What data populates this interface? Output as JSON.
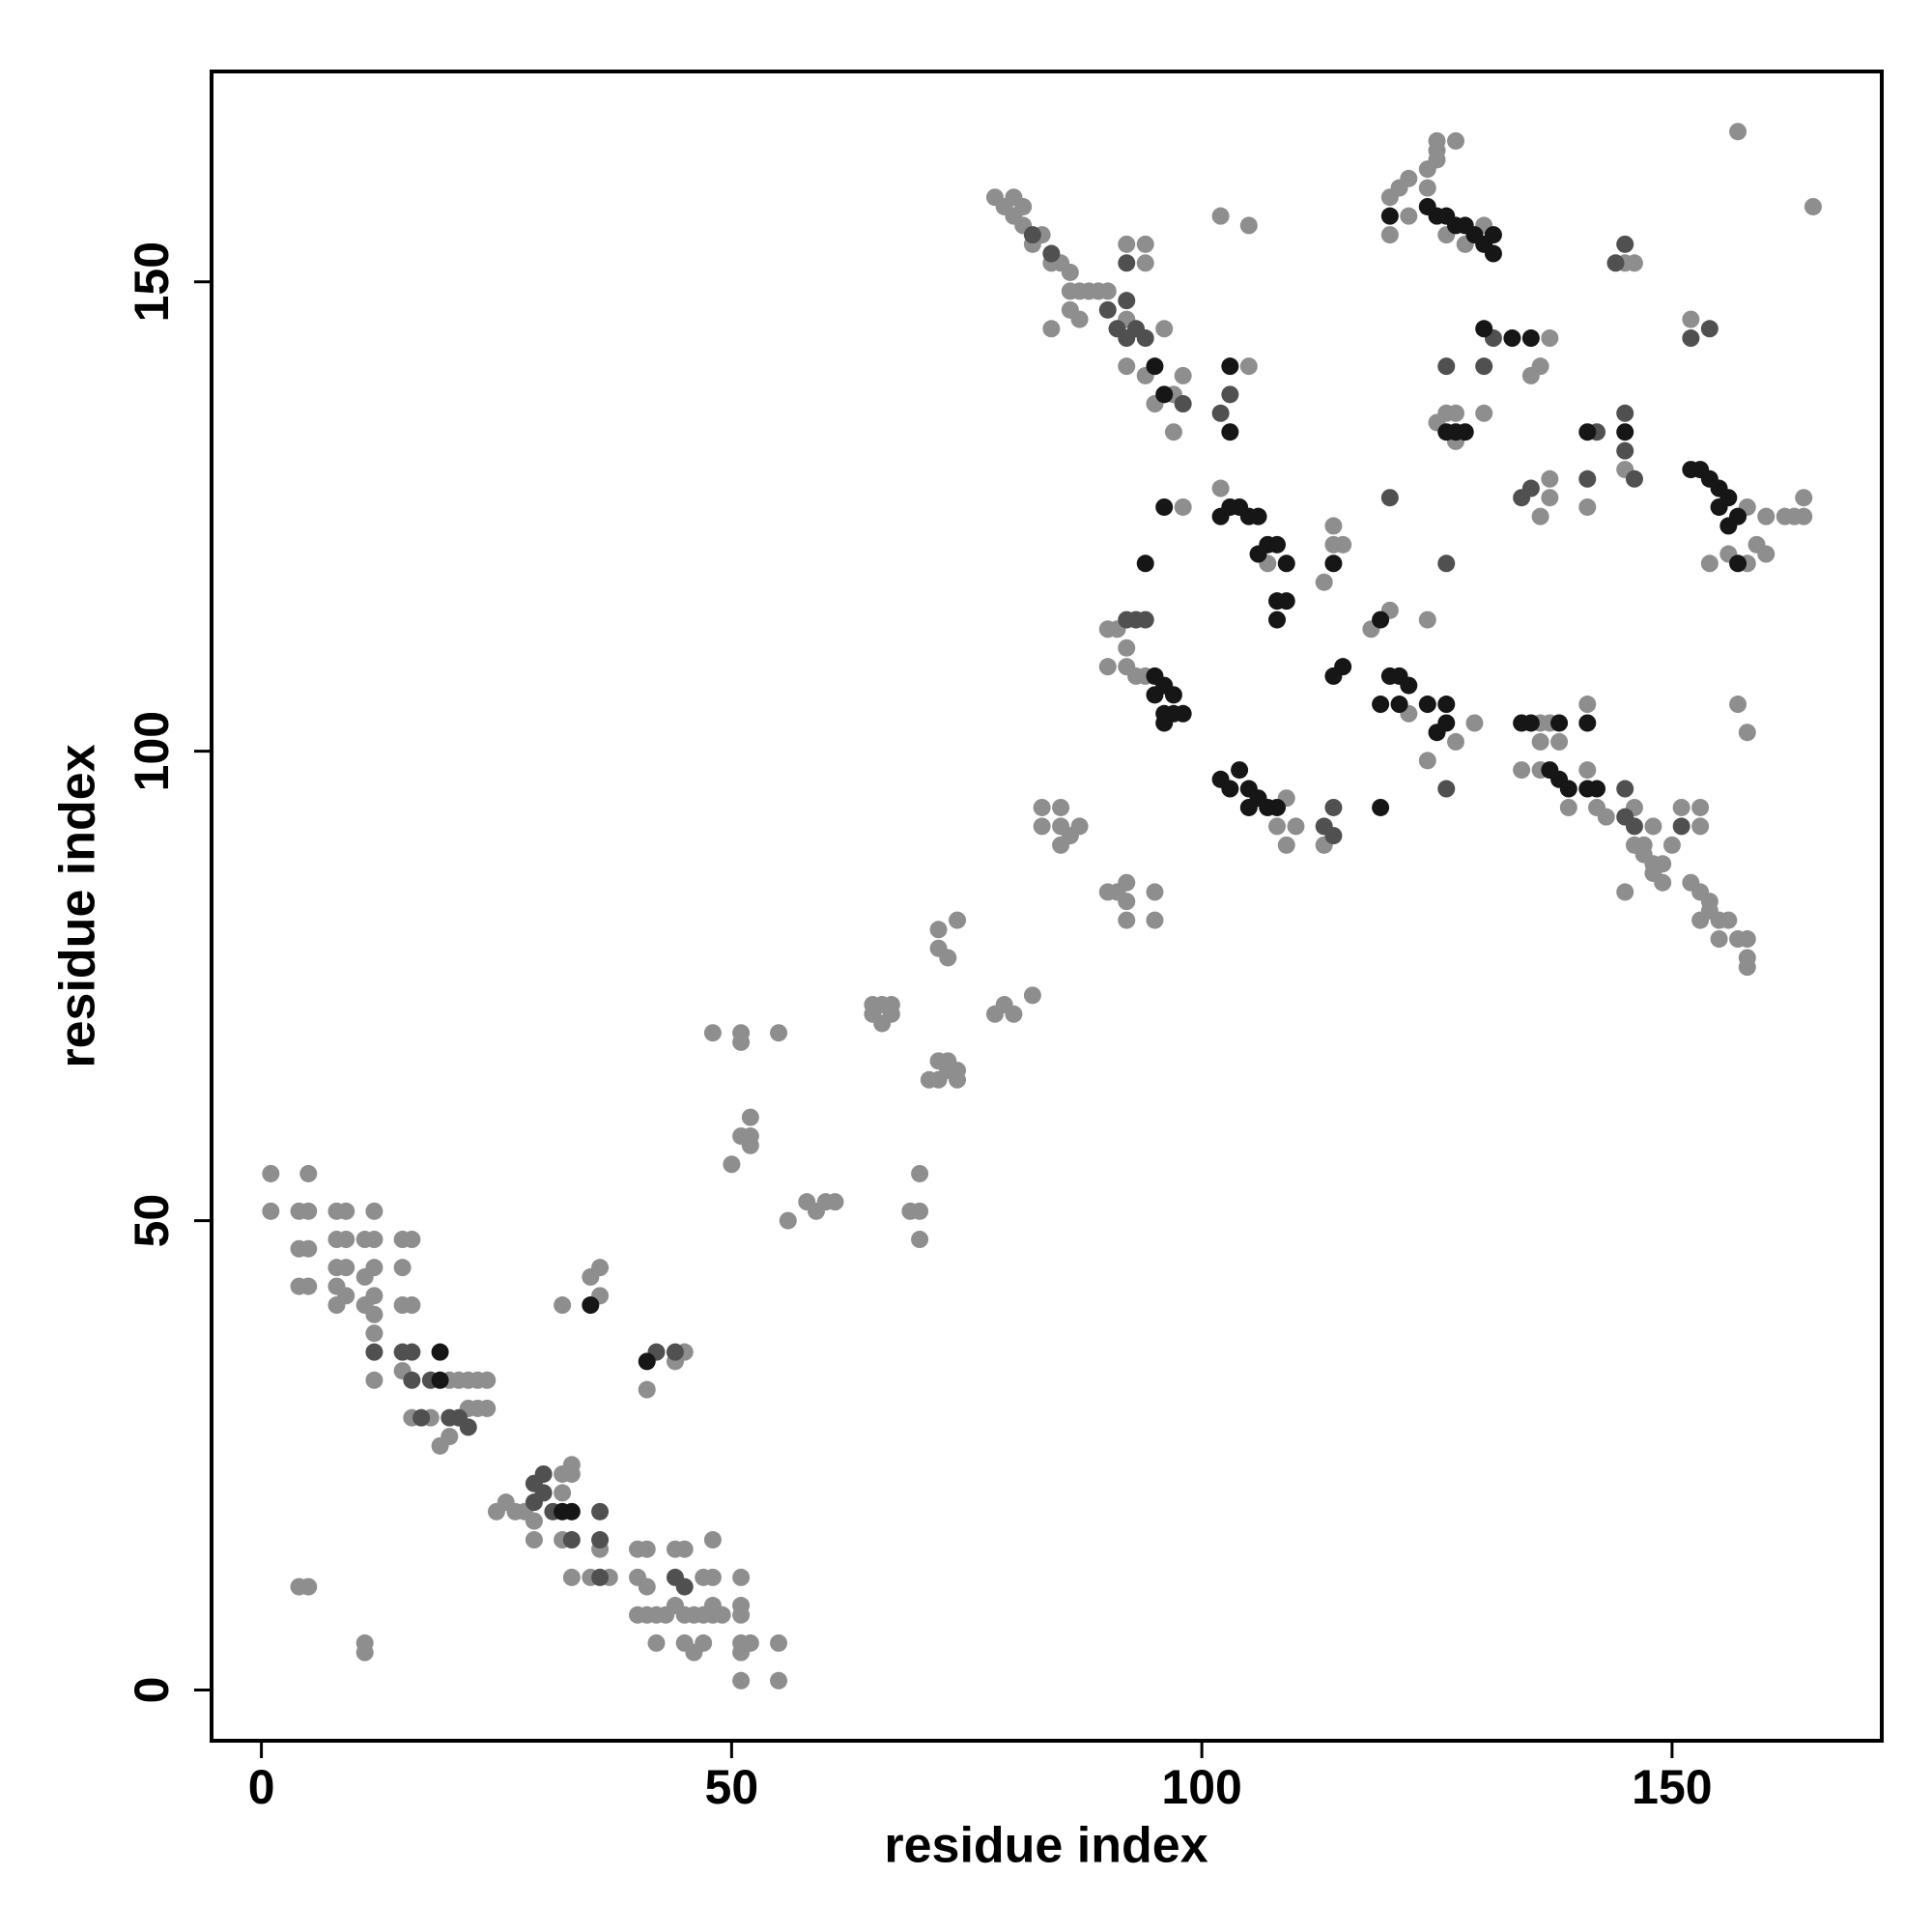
{
  "chart_data": {
    "type": "scatter",
    "xlabel": "residue index",
    "ylabel": "residue index",
    "xlim": [
      -5.3,
      172.3
    ],
    "ylim": [
      -5.4,
      172.4
    ],
    "xticks": [
      0,
      50,
      100,
      150
    ],
    "yticks": [
      0,
      50,
      100,
      150
    ],
    "series": [
      {
        "color": "#8e8e8e",
        "x": [
          1,
          5,
          1,
          4,
          5,
          8,
          9,
          12,
          4,
          5,
          8,
          9,
          11,
          12,
          15,
          16,
          4,
          5,
          8,
          9,
          8,
          9,
          8,
          11,
          12,
          12,
          15,
          15,
          16,
          11,
          12,
          12,
          12,
          15,
          20,
          21,
          22,
          23,
          24,
          16,
          18,
          19,
          20,
          22,
          23,
          24,
          4,
          5,
          11,
          11,
          25,
          26,
          27,
          28,
          29,
          29,
          32,
          32,
          33,
          33,
          32,
          33,
          36,
          35,
          37,
          40,
          41,
          40,
          41,
          40,
          41,
          42,
          42,
          43,
          44,
          45,
          44,
          45,
          46,
          45,
          46,
          47,
          47,
          47,
          48,
          48,
          48,
          48,
          49,
          51,
          51,
          51,
          51,
          52,
          51,
          51,
          55,
          55,
          32,
          35,
          36,
          36,
          41,
          44,
          45,
          48,
          51,
          51,
          55,
          50,
          51,
          52,
          52,
          52,
          56,
          58,
          59,
          60,
          61,
          69,
          70,
          70,
          70,
          65,
          66,
          67,
          65,
          67,
          66,
          71,
          72,
          73,
          74,
          74,
          72,
          73,
          72,
          73,
          72,
          74,
          78,
          79,
          80,
          82,
          83,
          83,
          85,
          85,
          86,
          85,
          87,
          90,
          91,
          92,
          92,
          95,
          92,
          95,
          78,
          79,
          80,
          81,
          80,
          81,
          83,
          82,
          84,
          85,
          86,
          86,
          87,
          88,
          89,
          86,
          87,
          84,
          90,
          92,
          96,
          92,
          94,
          95,
          98,
          97,
          97,
          92,
          94,
          94,
          102,
          105,
          105,
          98,
          102,
          107,
          90,
          91,
          90,
          92,
          92,
          93,
          94,
          109,
          108,
          109,
          110,
          113,
          113,
          114,
          115,
          114,
          118,
          120,
          122,
          127,
          129,
          124,
          124,
          120,
          121,
          122,
          122,
          120,
          124,
          124,
          125,
          125,
          125,
          127,
          130,
          128,
          126,
          125,
          126,
          127,
          127,
          130,
          136,
          135,
          137,
          136,
          137,
          137,
          141,
          145,
          145,
          146,
          152,
          158,
          156,
          158,
          159,
          160,
          160,
          162,
          163,
          164,
          164,
          154,
          157,
          158,
          165,
          157,
          134,
          136,
          139,
          141,
          142,
          143,
          146,
          147,
          148,
          146,
          147,
          148,
          149,
          148,
          149,
          150,
          152,
          153,
          154,
          154,
          155,
          156,
          157,
          158,
          158,
          158,
          155,
          153,
          145,
          136,
          137,
          141,
          136,
          138,
          151,
          153,
          153
        ],
        "y": [
          55,
          55,
          51,
          51,
          51,
          51,
          51,
          51,
          47,
          47,
          48,
          48,
          48,
          48,
          48,
          48,
          43,
          43,
          45,
          45,
          43,
          42,
          41,
          44,
          45,
          42,
          45,
          41,
          41,
          41,
          40,
          38,
          33,
          34,
          33,
          33,
          33,
          33,
          33,
          29,
          29,
          26,
          27,
          30,
          30,
          30,
          11,
          11,
          5,
          4,
          19,
          20,
          19,
          19,
          18,
          16,
          23,
          21,
          23,
          24,
          16,
          12,
          15,
          12,
          12,
          15,
          15,
          12,
          11,
          8,
          8,
          8,
          5,
          8,
          15,
          15,
          9,
          8,
          8,
          5,
          4,
          12,
          8,
          5,
          16,
          12,
          9,
          8,
          8,
          12,
          9,
          8,
          5,
          5,
          4,
          1,
          5,
          1,
          41,
          44,
          45,
          42,
          32,
          35,
          36,
          70,
          70,
          69,
          70,
          56,
          59,
          61,
          59,
          58,
          50,
          52,
          51,
          52,
          52,
          51,
          51,
          48,
          55,
          73,
          73,
          73,
          72,
          72,
          71,
          65,
          65,
          66,
          66,
          65,
          67,
          67,
          79,
          78,
          81,
          82,
          72,
          73,
          72,
          74,
          94,
          92,
          94,
          92,
          91,
          90,
          92,
          85,
          85,
          86,
          84,
          85,
          82,
          82,
          159,
          158,
          159,
          158,
          157,
          156,
          155,
          154,
          152,
          152,
          151,
          149,
          149,
          149,
          149,
          147,
          146,
          145,
          149,
          146,
          145,
          141,
          140,
          137,
          140,
          138,
          134,
          154,
          154,
          152,
          157,
          156,
          141,
          126,
          128,
          120,
          113,
          113,
          109,
          109,
          111,
          108,
          108,
          95,
          92,
          90,
          92,
          90,
          118,
          122,
          122,
          124,
          113,
          115,
          104,
          101,
          103,
          114,
          99,
          159,
          160,
          161,
          157,
          155,
          162,
          160,
          165,
          164,
          163,
          165,
          156,
          154,
          155,
          135,
          136,
          136,
          133,
          136,
          141,
          140,
          144,
          125,
          127,
          129,
          126,
          130,
          152,
          152,
          146,
          126,
          121,
          120,
          122,
          121,
          125,
          125,
          125,
          125,
          127,
          120,
          105,
          102,
          158,
          166,
          98,
          98,
          94,
          98,
          94,
          93,
          94,
          90,
          92,
          90,
          89,
          88,
          88,
          87,
          86,
          90,
          86,
          85,
          84,
          83,
          82,
          82,
          80,
          80,
          78,
          77,
          80,
          82,
          85,
          103,
          103,
          105,
          101,
          101,
          94,
          94,
          92
        ]
      },
      {
        "color": "#505050",
        "x": [
          12,
          15,
          16,
          16,
          18,
          20,
          21,
          29,
          30,
          33,
          36,
          36,
          36,
          92,
          93,
          94,
          93,
          92,
          94,
          92,
          113,
          114,
          114,
          120,
          126,
          126,
          126,
          130,
          131,
          134,
          135,
          141,
          142,
          145,
          145,
          146,
          144,
          145,
          152,
          154,
          145,
          145,
          146,
          151,
          102,
          103,
          92,
          82,
          84,
          90,
          91,
          98,
          42,
          44,
          44,
          45,
          29,
          30,
          31,
          22,
          17
        ],
        "y": [
          36,
          36,
          36,
          33,
          33,
          29,
          29,
          22,
          23,
          16,
          16,
          19,
          12,
          114,
          114,
          114,
          145,
          144,
          144,
          152,
          92,
          94,
          91,
          127,
          120,
          96,
          141,
          141,
          144,
          127,
          128,
          129,
          134,
          136,
          132,
          129,
          152,
          154,
          144,
          145,
          96,
          93,
          92,
          92,
          136,
          138,
          148,
          155,
          153,
          147,
          145,
          137,
          36,
          36,
          12,
          11,
          20,
          21,
          19,
          28,
          29
        ]
      },
      {
        "color": "#161616",
        "x": [
          35,
          41,
          32,
          33,
          19,
          19,
          103,
          103,
          102,
          103,
          104,
          105,
          106,
          106,
          107,
          108,
          109,
          96,
          94,
          108,
          109,
          108,
          95,
          96,
          95,
          97,
          96,
          97,
          98,
          96,
          102,
          103,
          104,
          105,
          106,
          105,
          107,
          108,
          114,
          115,
          119,
          120,
          121,
          122,
          119,
          121,
          124,
          125,
          126,
          126,
          119,
          124,
          125,
          126,
          127,
          128,
          129,
          130,
          131,
          131,
          120,
          126,
          127,
          128,
          130,
          133,
          135,
          141,
          145,
          152,
          153,
          154,
          155,
          156,
          157,
          155,
          156,
          157,
          137,
          138,
          139,
          141,
          142,
          134,
          135,
          138,
          141,
          114,
          96,
          95
        ],
        "y": [
          41,
          35,
          19,
          19,
          33,
          36,
          141,
          134,
          125,
          126,
          126,
          125,
          125,
          121,
          122,
          122,
          120,
          126,
          120,
          116,
          116,
          114,
          108,
          107,
          106,
          106,
          104,
          104,
          104,
          103,
          97,
          96,
          98,
          96,
          95,
          94,
          94,
          94,
          108,
          109,
          114,
          108,
          108,
          107,
          105,
          105,
          105,
          102,
          103,
          105,
          94,
          158,
          157,
          157,
          156,
          156,
          155,
          154,
          153,
          155,
          157,
          134,
          134,
          134,
          145,
          144,
          144,
          134,
          134,
          130,
          130,
          129,
          128,
          127,
          125,
          126,
          124,
          120,
          98,
          97,
          96,
          96,
          96,
          103,
          103,
          103,
          103,
          120,
          138,
          141
        ]
      }
    ]
  }
}
